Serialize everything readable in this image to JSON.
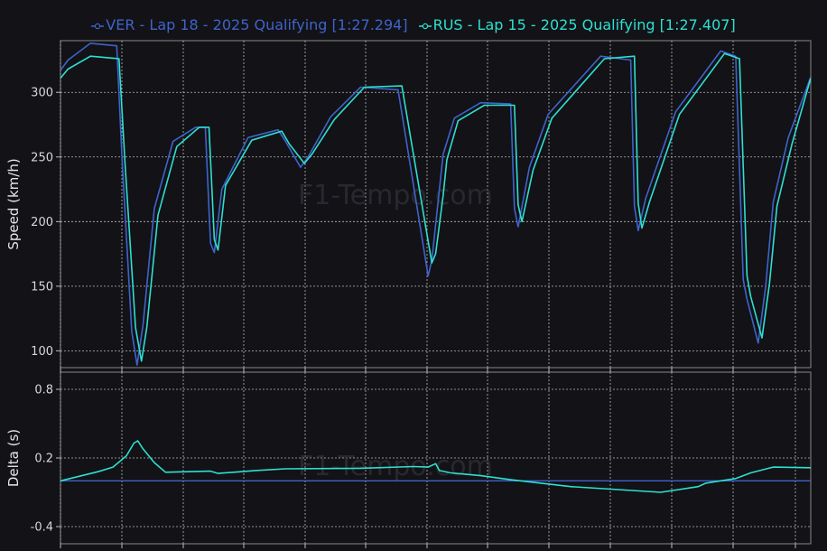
{
  "chart_data": [
    {
      "type": "line",
      "ylabel": "Speed (km/h)",
      "ylim": [
        87,
        340
      ],
      "yticks": [
        100,
        150,
        200,
        250,
        300
      ],
      "x_range": [
        0,
        1
      ],
      "grid": true,
      "legend_position": "top-center",
      "series": [
        {
          "name": "VER - Lap 18 - 2025 Qualifying [1:27.294]",
          "color": "#3f63c9",
          "x": [
            0,
            0.01,
            0.04,
            0.075,
            0.082,
            0.095,
            0.102,
            0.11,
            0.125,
            0.15,
            0.18,
            0.193,
            0.2,
            0.205,
            0.215,
            0.25,
            0.29,
            0.3,
            0.32,
            0.33,
            0.36,
            0.4,
            0.45,
            0.49,
            0.495,
            0.505,
            0.51,
            0.525,
            0.56,
            0.6,
            0.605,
            0.61,
            0.625,
            0.65,
            0.72,
            0.76,
            0.765,
            0.77,
            0.78,
            0.82,
            0.88,
            0.9,
            0.91,
            0.915,
            0.93,
            0.94,
            0.95,
            0.97,
            1.0
          ],
          "y": [
            317,
            325,
            338,
            336,
            250,
            115,
            89,
            120,
            210,
            262,
            273,
            273,
            183,
            176,
            225,
            265,
            271,
            262,
            242,
            250,
            281,
            304,
            302,
            158,
            170,
            225,
            252,
            280,
            292,
            291,
            210,
            196,
            242,
            283,
            328,
            325,
            212,
            193,
            218,
            285,
            332,
            328,
            155,
            140,
            106,
            150,
            215,
            265,
            312
          ]
        },
        {
          "name": "RUS - Lap 15 - 2025 Qualifying [1:27.407]",
          "color": "#2de0cf",
          "x": [
            0,
            0.01,
            0.04,
            0.078,
            0.086,
            0.1,
            0.108,
            0.115,
            0.13,
            0.155,
            0.185,
            0.198,
            0.205,
            0.21,
            0.22,
            0.255,
            0.295,
            0.305,
            0.325,
            0.335,
            0.365,
            0.405,
            0.455,
            0.495,
            0.5,
            0.51,
            0.515,
            0.53,
            0.565,
            0.605,
            0.61,
            0.615,
            0.63,
            0.655,
            0.725,
            0.765,
            0.77,
            0.775,
            0.785,
            0.825,
            0.885,
            0.905,
            0.915,
            0.92,
            0.935,
            0.945,
            0.955,
            0.975,
            1.0
          ],
          "y": [
            311,
            318,
            328,
            326,
            245,
            118,
            92,
            118,
            205,
            258,
            273,
            273,
            186,
            178,
            228,
            263,
            270,
            260,
            245,
            252,
            279,
            304,
            305,
            168,
            175,
            220,
            248,
            278,
            290,
            290,
            213,
            200,
            240,
            280,
            326,
            328,
            214,
            195,
            215,
            283,
            330,
            326,
            158,
            142,
            110,
            152,
            212,
            260,
            311
          ]
        }
      ]
    },
    {
      "type": "line",
      "ylabel": "Delta (s)",
      "ylim": [
        -0.55,
        0.95
      ],
      "yticks": [
        -0.4,
        0.2,
        0.8
      ],
      "x_range": [
        0,
        1
      ],
      "grid": true,
      "baseline": 0,
      "series": [
        {
          "name": "RUS - Lap 15 - 2025 Qualifying [1:27.407]",
          "color": "#2de0cf",
          "x": [
            0,
            0.05,
            0.07,
            0.088,
            0.098,
            0.103,
            0.11,
            0.125,
            0.14,
            0.2,
            0.21,
            0.26,
            0.3,
            0.4,
            0.47,
            0.49,
            0.5,
            0.505,
            0.52,
            0.56,
            0.6,
            0.68,
            0.8,
            0.85,
            0.86,
            0.87,
            0.9,
            0.92,
            0.95,
            1.0
          ],
          "y": [
            0.0,
            0.08,
            0.12,
            0.22,
            0.33,
            0.35,
            0.28,
            0.16,
            0.075,
            0.085,
            0.065,
            0.09,
            0.105,
            0.11,
            0.125,
            0.12,
            0.15,
            0.09,
            0.07,
            0.045,
            0.01,
            -0.05,
            -0.1,
            -0.05,
            -0.02,
            -0.01,
            0.02,
            0.07,
            0.12,
            0.115
          ]
        }
      ]
    }
  ],
  "watermark": "F1-Tempo.com"
}
